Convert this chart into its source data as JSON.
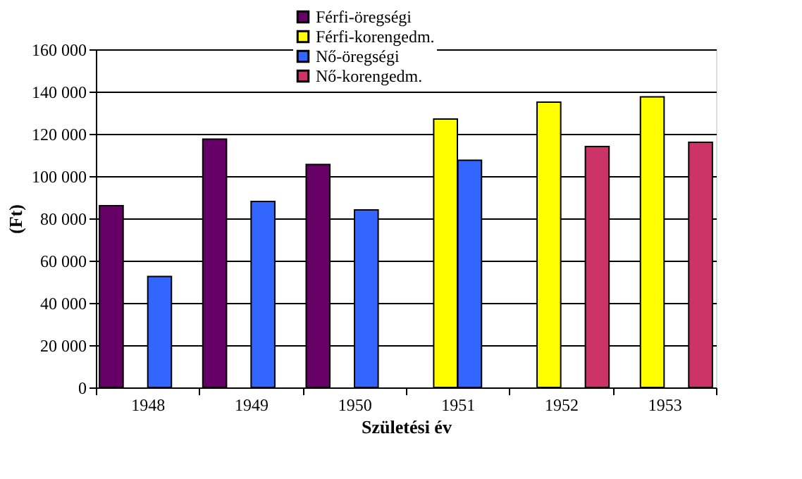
{
  "chart_data": {
    "type": "bar",
    "xlabel": "Születési év",
    "ylabel": "(Ft)",
    "categories": [
      "1948",
      "1949",
      "1950",
      "1951",
      "1952",
      "1953"
    ],
    "series": [
      {
        "name": "Férfi-öregségi",
        "color": "#660066",
        "values": [
          86000,
          117500,
          105500,
          null,
          null,
          null
        ]
      },
      {
        "name": "Férfi-korengedm.",
        "color": "#ffff00",
        "values": [
          null,
          null,
          null,
          127000,
          135000,
          137500
        ]
      },
      {
        "name": "Nő-öregségi",
        "color": "#3366ff",
        "values": [
          52500,
          88000,
          84000,
          107500,
          null,
          null
        ]
      },
      {
        "name": "Nő-korengedm.",
        "color": "#cc3366",
        "values": [
          null,
          null,
          null,
          null,
          114000,
          116000
        ]
      }
    ],
    "ylim": [
      0,
      160000
    ],
    "yticks": [
      {
        "value": 0,
        "label": "0"
      },
      {
        "value": 20000,
        "label": "20 000"
      },
      {
        "value": 40000,
        "label": "40 000"
      },
      {
        "value": 60000,
        "label": "60 000"
      },
      {
        "value": 80000,
        "label": "80 000"
      },
      {
        "value": 100000,
        "label": "100 000"
      },
      {
        "value": 120000,
        "label": "120 000"
      },
      {
        "value": 140000,
        "label": "140 000"
      },
      {
        "value": 160000,
        "label": "160 000"
      }
    ],
    "grid": "y",
    "legend": "top"
  }
}
